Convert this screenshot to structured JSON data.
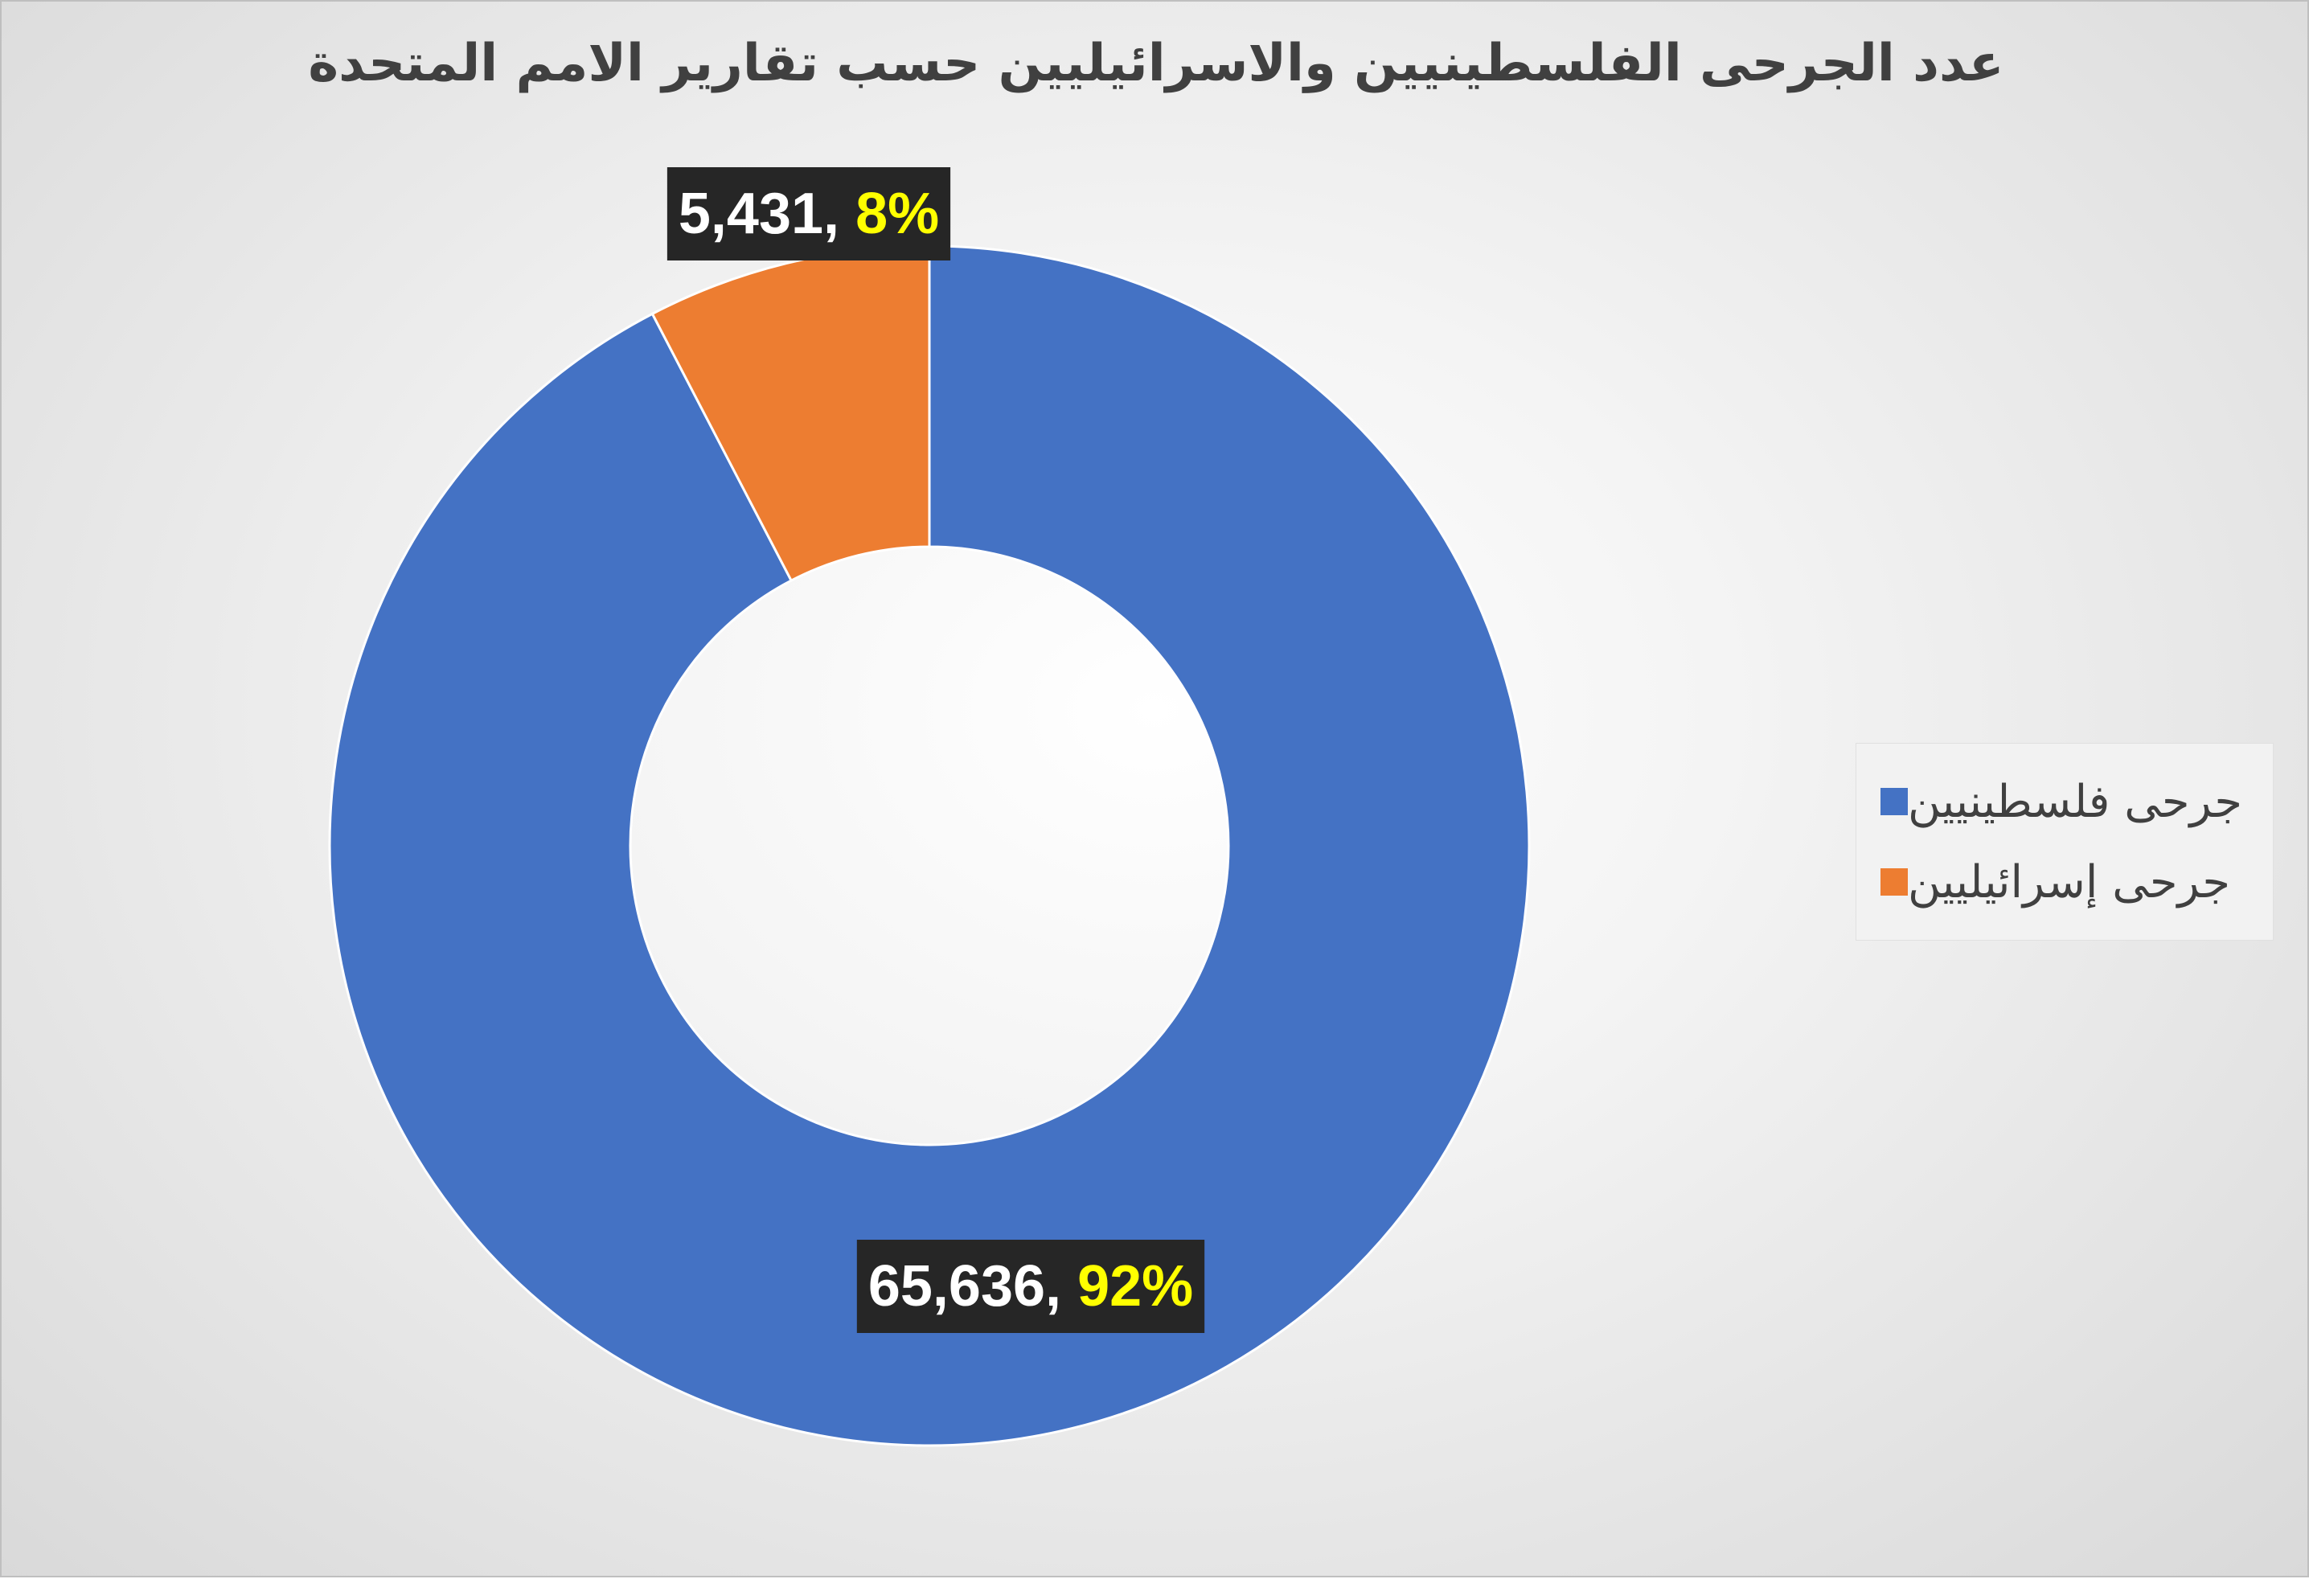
{
  "chart_data": {
    "type": "donut",
    "title": "عدد الجرحى الفلسطينيين والاسرائيليين حسب تقارير الامم المتحدة",
    "categories": [
      "جرحى فلسطينيين",
      "جرحى إسرائيليين"
    ],
    "values": [
      65636,
      5431
    ],
    "percent_labels": [
      "92%",
      "8%"
    ],
    "value_labels": [
      "65,636, ",
      "5,431, "
    ],
    "colors": [
      "#4472C4",
      "#ED7D31"
    ],
    "label_percent_color": "#FFFF00",
    "label_value_color": "#FFFFFF",
    "label_box_color": "#262626",
    "legend_position": "right",
    "grid": false
  }
}
